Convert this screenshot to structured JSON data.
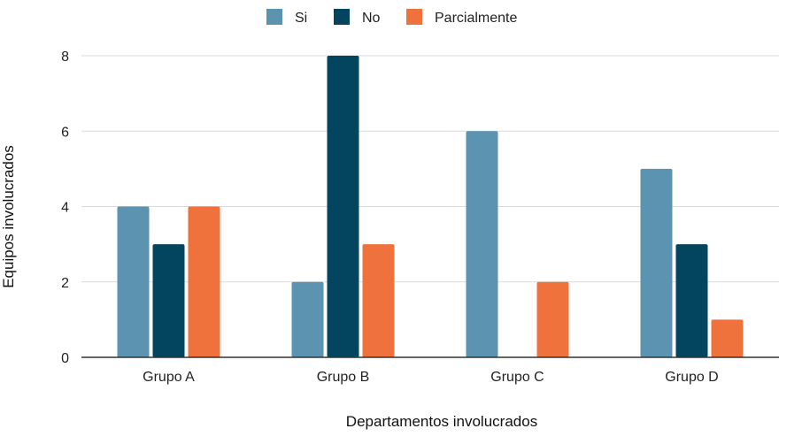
{
  "chart_data": {
    "type": "bar",
    "categories": [
      "Grupo A",
      "Grupo B",
      "Grupo C",
      "Grupo D"
    ],
    "series": [
      {
        "name": "Si",
        "values": [
          4,
          2,
          6,
          5
        ],
        "color": "#5b93b0"
      },
      {
        "name": "No",
        "values": [
          3,
          8,
          0,
          3
        ],
        "color": "#03445f"
      },
      {
        "name": "Parcialmente",
        "values": [
          4,
          3,
          2,
          1
        ],
        "color": "#ef713b"
      }
    ],
    "yticks": [
      "0",
      "2",
      "4",
      "6",
      "8"
    ],
    "ylim": [
      0,
      8
    ],
    "xlabel": "Departamentos involucrados",
    "ylabel": "Equipos involucrados",
    "grid": true,
    "legend_position": "top"
  }
}
